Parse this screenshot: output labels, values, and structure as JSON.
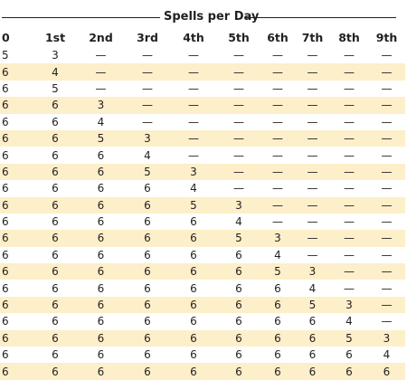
{
  "table": {
    "title": "Spells per Day",
    "headers": [
      "0",
      "1st",
      "2nd",
      "3rd",
      "4th",
      "5th",
      "6th",
      "7th",
      "8th",
      "9th"
    ],
    "rows": [
      [
        "5",
        "3",
        "—",
        "—",
        "—",
        "—",
        "—",
        "—",
        "—",
        "—"
      ],
      [
        "6",
        "4",
        "—",
        "—",
        "—",
        "—",
        "—",
        "—",
        "—",
        "—"
      ],
      [
        "6",
        "5",
        "—",
        "—",
        "—",
        "—",
        "—",
        "—",
        "—",
        "—"
      ],
      [
        "6",
        "6",
        "3",
        "—",
        "—",
        "—",
        "—",
        "—",
        "—",
        "—"
      ],
      [
        "6",
        "6",
        "4",
        "—",
        "—",
        "—",
        "—",
        "—",
        "—",
        "—"
      ],
      [
        "6",
        "6",
        "5",
        "3",
        "—",
        "—",
        "—",
        "—",
        "—",
        "—"
      ],
      [
        "6",
        "6",
        "6",
        "4",
        "—",
        "—",
        "—",
        "—",
        "—",
        "—"
      ],
      [
        "6",
        "6",
        "6",
        "5",
        "3",
        "—",
        "—",
        "—",
        "—",
        "—"
      ],
      [
        "6",
        "6",
        "6",
        "6",
        "4",
        "—",
        "—",
        "—",
        "—",
        "—"
      ],
      [
        "6",
        "6",
        "6",
        "6",
        "5",
        "3",
        "—",
        "—",
        "—",
        "—"
      ],
      [
        "6",
        "6",
        "6",
        "6",
        "6",
        "4",
        "—",
        "—",
        "—",
        "—"
      ],
      [
        "6",
        "6",
        "6",
        "6",
        "6",
        "5",
        "3",
        "—",
        "—",
        "—"
      ],
      [
        "6",
        "6",
        "6",
        "6",
        "6",
        "6",
        "4",
        "—",
        "—",
        "—"
      ],
      [
        "6",
        "6",
        "6",
        "6",
        "6",
        "6",
        "5",
        "3",
        "—",
        "—"
      ],
      [
        "6",
        "6",
        "6",
        "6",
        "6",
        "6",
        "6",
        "4",
        "—",
        "—"
      ],
      [
        "6",
        "6",
        "6",
        "6",
        "6",
        "6",
        "6",
        "5",
        "3",
        "—"
      ],
      [
        "6",
        "6",
        "6",
        "6",
        "6",
        "6",
        "6",
        "6",
        "4",
        "—"
      ],
      [
        "6",
        "6",
        "6",
        "6",
        "6",
        "6",
        "6",
        "6",
        "5",
        "3"
      ],
      [
        "6",
        "6",
        "6",
        "6",
        "6",
        "6",
        "6",
        "6",
        "6",
        "4"
      ],
      [
        "6",
        "6",
        "6",
        "6",
        "6",
        "6",
        "6",
        "6",
        "6",
        "6"
      ]
    ]
  },
  "colors": {
    "shade": "#fdefc9",
    "text": "#231f20"
  }
}
